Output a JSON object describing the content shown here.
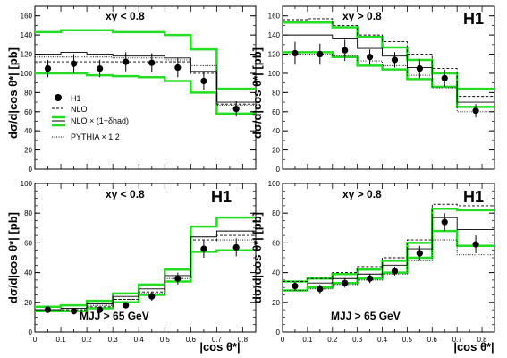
{
  "chart_data": [
    {
      "type": "step",
      "panel": "top-left",
      "region_label": "xγ < 0.8",
      "experiment_label": "",
      "cut_label": "",
      "ylabel": "dσ/d|cos θ*| [pb]",
      "xlabel": "",
      "xlim": [
        0,
        0.85
      ],
      "ylim": [
        0,
        170
      ],
      "yticks": [
        0,
        20,
        40,
        60,
        80,
        100,
        120,
        140,
        160
      ],
      "xticks": [],
      "bins": [
        0,
        0.1,
        0.2,
        0.3,
        0.4,
        0.5,
        0.6,
        0.7,
        0.85
      ],
      "data": {
        "x": [
          0.05,
          0.15,
          0.25,
          0.35,
          0.45,
          0.55,
          0.65,
          0.775
        ],
        "y": [
          105,
          110,
          105,
          112,
          111,
          106,
          92,
          63
        ],
        "err": [
          9,
          10,
          9,
          10,
          10,
          10,
          9,
          8
        ]
      },
      "nlo": [
        112,
        112,
        112,
        112,
        112,
        112,
        100,
        68
      ],
      "nlo_had_upper": [
        143,
        145,
        145,
        143,
        143,
        140,
        125,
        84
      ],
      "nlo_had_central": [
        120,
        122,
        120,
        118,
        118,
        116,
        102,
        70
      ],
      "nlo_had_lower": [
        100,
        100,
        98,
        97,
        96,
        92,
        80,
        58
      ],
      "pythia": [
        117,
        117,
        117,
        116,
        116,
        114,
        108,
        67
      ],
      "legend": {
        "h1": "H1",
        "nlo": "NLO",
        "nlo_had": "NLO × (1+δhad)",
        "pythia": "PYTHIA × 1.2"
      }
    },
    {
      "type": "step",
      "panel": "top-right",
      "region_label": "xγ > 0.8",
      "experiment_label": "H1",
      "cut_label": "",
      "ylabel": "dσ/d|cos θ*| [pb]",
      "xlabel": "",
      "xlim": [
        0,
        0.85
      ],
      "ylim": [
        0,
        170
      ],
      "yticks": [
        0,
        20,
        40,
        60,
        80,
        100,
        120,
        140,
        160
      ],
      "xticks": [],
      "bins": [
        0,
        0.1,
        0.2,
        0.3,
        0.4,
        0.5,
        0.6,
        0.7,
        0.85
      ],
      "data": {
        "x": [
          0.05,
          0.15,
          0.25,
          0.35,
          0.45,
          0.55,
          0.65,
          0.775
        ],
        "y": [
          121,
          120,
          124,
          117,
          114,
          105,
          95,
          61
        ],
        "err": [
          12,
          11,
          11,
          8,
          8,
          10,
          9,
          7
        ]
      },
      "nlo": [
        156,
        157,
        150,
        140,
        133,
        120,
        105,
        76
      ],
      "nlo_had_upper": [
        153,
        153,
        148,
        138,
        127,
        114,
        100,
        84
      ],
      "nlo_had_central": [
        140,
        140,
        136,
        126,
        118,
        106,
        92,
        70
      ],
      "nlo_had_lower": [
        122,
        122,
        117,
        108,
        104,
        94,
        86,
        65
      ],
      "pythia": [
        120,
        120,
        118,
        113,
        108,
        98,
        85,
        60
      ]
    },
    {
      "type": "step",
      "panel": "bottom-left",
      "region_label": "xγ < 0.8",
      "experiment_label": "H1",
      "cut_label": "MJJ > 65 GeV",
      "ylabel": "dσ/d|cos θ*| [pb]",
      "xlabel": "|cos θ*|",
      "xlim": [
        0,
        0.85
      ],
      "ylim": [
        0,
        100
      ],
      "yticks": [
        0,
        20,
        40,
        60,
        80,
        100
      ],
      "xticks": [
        0,
        0.1,
        0.2,
        0.3,
        0.4,
        0.5,
        0.6,
        0.7,
        0.8
      ],
      "bins": [
        0,
        0.1,
        0.2,
        0.3,
        0.4,
        0.5,
        0.6,
        0.7,
        0.85
      ],
      "data": {
        "x": [
          0.05,
          0.15,
          0.25,
          0.35,
          0.45,
          0.55,
          0.65,
          0.775
        ],
        "y": [
          15,
          14,
          15,
          18,
          24,
          36,
          56,
          57
        ],
        "err": [
          2,
          2,
          2,
          2,
          3,
          4,
          6,
          6
        ]
      },
      "nlo": [
        15,
        15,
        17,
        22,
        27,
        37,
        62,
        65
      ],
      "nlo_had_upper": [
        17,
        18,
        21,
        26,
        32,
        42,
        71,
        77
      ],
      "nlo_had_central": [
        15,
        16,
        19,
        24,
        29,
        38,
        64,
        68
      ],
      "nlo_had_lower": [
        14,
        14,
        16,
        20,
        25,
        34,
        54,
        55
      ],
      "pythia": [
        15,
        15,
        18,
        22,
        26,
        36,
        60,
        62
      ]
    },
    {
      "type": "step",
      "panel": "bottom-right",
      "region_label": "xγ > 0.8",
      "experiment_label": "H1",
      "cut_label": "MJJ > 65 GeV",
      "ylabel": "dσ/d|cos θ*| [pb]",
      "xlabel": "|cos θ*|",
      "xlim": [
        0,
        0.85
      ],
      "ylim": [
        0,
        100
      ],
      "yticks": [
        0,
        20,
        40,
        60,
        80,
        100
      ],
      "xticks": [
        0,
        0.1,
        0.2,
        0.3,
        0.4,
        0.5,
        0.6,
        0.7,
        0.8
      ],
      "bins": [
        0,
        0.1,
        0.2,
        0.3,
        0.4,
        0.5,
        0.6,
        0.7,
        0.85
      ],
      "data": {
        "x": [
          0.05,
          0.15,
          0.25,
          0.35,
          0.45,
          0.55,
          0.65,
          0.775
        ],
        "y": [
          31,
          29,
          33,
          36,
          41,
          53,
          74,
          59
        ],
        "err": [
          3,
          3,
          3,
          3,
          3,
          5,
          6,
          6
        ]
      },
      "nlo": [
        34,
        36,
        40,
        44,
        50,
        62,
        86,
        85
      ],
      "nlo_had_upper": [
        34,
        36,
        39,
        42,
        48,
        60,
        83,
        82
      ],
      "nlo_had_central": [
        31,
        33,
        36,
        39,
        45,
        56,
        77,
        69
      ],
      "nlo_had_lower": [
        28,
        30,
        33,
        36,
        40,
        50,
        68,
        58
      ],
      "pythia": [
        28,
        29,
        32,
        35,
        39,
        48,
        62,
        52
      ]
    }
  ],
  "colors": {
    "frame": "#000000",
    "data": "#000000",
    "nlo": "#000000",
    "nlo_had_band": "#22dd22",
    "nlo_had_central": "#000000",
    "pythia": "#000000"
  }
}
